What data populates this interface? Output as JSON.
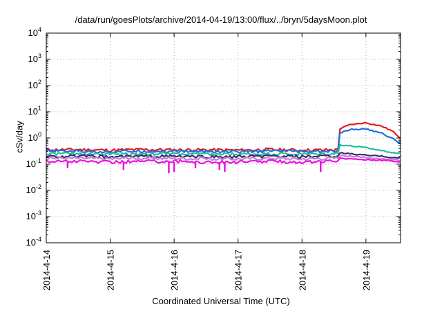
{
  "chart_data": {
    "type": "line",
    "title": "/data/run/goesPlots/archive/2014-04-19/13:00/flux/../bryn/5daysMoon.plot",
    "xlabel": "Coordinated Universal Time (UTC)",
    "ylabel": "cSv/day",
    "xlim": [
      "2014-04-14T00:00",
      "2014-04-19T13:00"
    ],
    "x_ticks": [
      "2014-4-14",
      "2014-4-15",
      "2014-4-16",
      "2014-4-17",
      "2014-4-18",
      "2014-4-19"
    ],
    "y_scale": "log",
    "ylim": [
      0.0001,
      10000
    ],
    "y_ticks": [
      {
        "value": 0.0001,
        "base": "10",
        "exp": "-4"
      },
      {
        "value": 0.001,
        "base": "10",
        "exp": "-3"
      },
      {
        "value": 0.01,
        "base": "10",
        "exp": "-2"
      },
      {
        "value": 0.1,
        "base": "10",
        "exp": "-1"
      },
      {
        "value": 1,
        "base": "10",
        "exp": "0"
      },
      {
        "value": 10,
        "base": "10",
        "exp": "1"
      },
      {
        "value": 100,
        "base": "10",
        "exp": "2"
      },
      {
        "value": 1000,
        "base": "10",
        "exp": "3"
      },
      {
        "value": 10000,
        "base": "10",
        "exp": "4"
      }
    ],
    "grid": true,
    "legend": "none",
    "series": [
      {
        "color": "#e41a1c",
        "points": [
          [
            "2014-04-14T00:00",
            0.35
          ],
          [
            "2014-04-14T12:00",
            0.36
          ],
          [
            "2014-04-15T00:00",
            0.34
          ],
          [
            "2014-04-15T12:00",
            0.36
          ],
          [
            "2014-04-16T00:00",
            0.35
          ],
          [
            "2014-04-16T12:00",
            0.35
          ],
          [
            "2014-04-17T00:00",
            0.34
          ],
          [
            "2014-04-17T12:00",
            0.36
          ],
          [
            "2014-04-18T00:00",
            0.34
          ],
          [
            "2014-04-18T12:00",
            0.35
          ],
          [
            "2014-04-18T13:30",
            0.36
          ],
          [
            "2014-04-18T14:00",
            2.2
          ],
          [
            "2014-04-18T18:00",
            3.2
          ],
          [
            "2014-04-19T00:00",
            3.8
          ],
          [
            "2014-04-19T06:00",
            2.8
          ],
          [
            "2014-04-19T10:00",
            1.8
          ],
          [
            "2014-04-19T13:00",
            1.0
          ]
        ]
      },
      {
        "color": "#1f6fe0",
        "points": [
          [
            "2014-04-14T00:00",
            0.31
          ],
          [
            "2014-04-14T12:00",
            0.32
          ],
          [
            "2014-04-15T00:00",
            0.3
          ],
          [
            "2014-04-15T12:00",
            0.32
          ],
          [
            "2014-04-16T00:00",
            0.31
          ],
          [
            "2014-04-16T12:00",
            0.31
          ],
          [
            "2014-04-17T00:00",
            0.3
          ],
          [
            "2014-04-17T12:00",
            0.32
          ],
          [
            "2014-04-18T00:00",
            0.3
          ],
          [
            "2014-04-18T12:00",
            0.31
          ],
          [
            "2014-04-18T13:30",
            0.32
          ],
          [
            "2014-04-18T14:00",
            1.5
          ],
          [
            "2014-04-18T18:00",
            2.1
          ],
          [
            "2014-04-19T00:00",
            2.2
          ],
          [
            "2014-04-19T06:00",
            1.5
          ],
          [
            "2014-04-19T10:00",
            0.95
          ],
          [
            "2014-04-19T13:00",
            0.6
          ]
        ]
      },
      {
        "color": "#1fbf9a",
        "points": [
          [
            "2014-04-14T00:00",
            0.25
          ],
          [
            "2014-04-14T12:00",
            0.25
          ],
          [
            "2014-04-15T00:00",
            0.24
          ],
          [
            "2014-04-15T12:00",
            0.25
          ],
          [
            "2014-04-16T00:00",
            0.25
          ],
          [
            "2014-04-16T12:00",
            0.24
          ],
          [
            "2014-04-17T00:00",
            0.24
          ],
          [
            "2014-04-17T12:00",
            0.25
          ],
          [
            "2014-04-18T00:00",
            0.24
          ],
          [
            "2014-04-18T12:00",
            0.25
          ],
          [
            "2014-04-18T13:30",
            0.26
          ],
          [
            "2014-04-18T14:00",
            0.55
          ],
          [
            "2014-04-18T18:00",
            0.5
          ],
          [
            "2014-04-19T00:00",
            0.42
          ],
          [
            "2014-04-19T06:00",
            0.33
          ],
          [
            "2014-04-19T10:00",
            0.28
          ],
          [
            "2014-04-19T13:00",
            0.26
          ]
        ]
      },
      {
        "color": "#3c2a6e",
        "points": [
          [
            "2014-04-14T00:00",
            0.2
          ],
          [
            "2014-04-14T12:00",
            0.2
          ],
          [
            "2014-04-15T00:00",
            0.19
          ],
          [
            "2014-04-15T12:00",
            0.2
          ],
          [
            "2014-04-16T00:00",
            0.2
          ],
          [
            "2014-04-16T12:00",
            0.19
          ],
          [
            "2014-04-17T00:00",
            0.19
          ],
          [
            "2014-04-17T12:00",
            0.2
          ],
          [
            "2014-04-18T00:00",
            0.19
          ],
          [
            "2014-04-18T12:00",
            0.2
          ],
          [
            "2014-04-18T13:30",
            0.2
          ],
          [
            "2014-04-18T14:00",
            0.27
          ],
          [
            "2014-04-18T18:00",
            0.25
          ],
          [
            "2014-04-19T00:00",
            0.22
          ],
          [
            "2014-04-19T06:00",
            0.2
          ],
          [
            "2014-04-19T10:00",
            0.18
          ],
          [
            "2014-04-19T13:00",
            0.17
          ]
        ]
      },
      {
        "color": "#c77dd6",
        "points": [
          [
            "2014-04-14T00:00",
            0.17
          ],
          [
            "2014-04-14T12:00",
            0.17
          ],
          [
            "2014-04-15T00:00",
            0.16
          ],
          [
            "2014-04-15T12:00",
            0.17
          ],
          [
            "2014-04-16T00:00",
            0.17
          ],
          [
            "2014-04-16T12:00",
            0.16
          ],
          [
            "2014-04-17T00:00",
            0.16
          ],
          [
            "2014-04-17T12:00",
            0.17
          ],
          [
            "2014-04-18T00:00",
            0.16
          ],
          [
            "2014-04-18T12:00",
            0.17
          ],
          [
            "2014-04-18T13:30",
            0.17
          ],
          [
            "2014-04-18T14:00",
            0.22
          ],
          [
            "2014-04-18T18:00",
            0.2
          ],
          [
            "2014-04-19T00:00",
            0.18
          ],
          [
            "2014-04-19T06:00",
            0.16
          ],
          [
            "2014-04-19T10:00",
            0.15
          ],
          [
            "2014-04-19T13:00",
            0.14
          ]
        ]
      },
      {
        "color": "#ee10e0",
        "points": [
          [
            "2014-04-14T00:00",
            0.13
          ],
          [
            "2014-04-14T12:00",
            0.13
          ],
          [
            "2014-04-15T00:00",
            0.12
          ],
          [
            "2014-04-15T12:00",
            0.13
          ],
          [
            "2014-04-16T00:00",
            0.13
          ],
          [
            "2014-04-16T12:00",
            0.12
          ],
          [
            "2014-04-17T00:00",
            0.12
          ],
          [
            "2014-04-17T12:00",
            0.13
          ],
          [
            "2014-04-18T00:00",
            0.12
          ],
          [
            "2014-04-18T12:00",
            0.13
          ],
          [
            "2014-04-18T13:30",
            0.13
          ],
          [
            "2014-04-18T14:00",
            0.17
          ],
          [
            "2014-04-18T18:00",
            0.16
          ],
          [
            "2014-04-19T00:00",
            0.15
          ],
          [
            "2014-04-19T06:00",
            0.14
          ],
          [
            "2014-04-19T10:00",
            0.13
          ],
          [
            "2014-04-19T13:00",
            0.12
          ]
        ]
      }
    ],
    "dips": [
      {
        "x": "2014-04-14T08:00",
        "series": 5,
        "y": 0.07
      },
      {
        "x": "2014-04-15T05:00",
        "series": 5,
        "y": 0.06
      },
      {
        "x": "2014-04-15T22:00",
        "series": 5,
        "y": 0.045
      },
      {
        "x": "2014-04-16T00:00",
        "series": 5,
        "y": 0.05
      },
      {
        "x": "2014-04-16T08:00",
        "series": 5,
        "y": 0.07
      },
      {
        "x": "2014-04-16T17:00",
        "series": 5,
        "y": 0.06
      },
      {
        "x": "2014-04-16T19:00",
        "series": 5,
        "y": 0.05
      },
      {
        "x": "2014-04-18T07:00",
        "series": 5,
        "y": 0.05
      }
    ]
  }
}
